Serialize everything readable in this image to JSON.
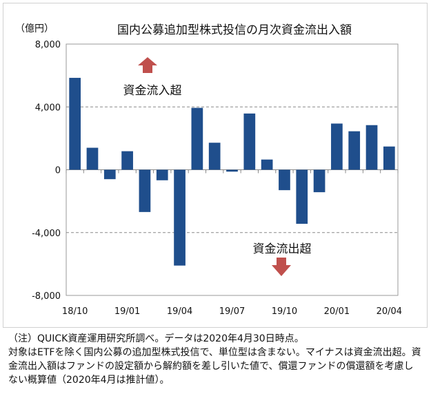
{
  "chart_data": {
    "type": "bar",
    "title": "国内公募追加型株式投信の月次資金流出入額",
    "ylabel": "（億円）",
    "xlabel": "",
    "ylim": [
      -8000,
      8000
    ],
    "yticks": [
      8000,
      4000,
      0,
      -4000,
      -8000
    ],
    "ytick_labels": [
      "8,000",
      "4,000",
      "0",
      "-4,000",
      "-8,000"
    ],
    "categories": [
      "18/10",
      "18/11",
      "18/12",
      "19/01",
      "19/02",
      "19/03",
      "19/04",
      "19/05",
      "19/06",
      "19/07",
      "19/08",
      "19/09",
      "19/10",
      "19/11",
      "19/12",
      "20/01",
      "20/02",
      "20/03",
      "20/04"
    ],
    "xtick_labels": {
      "0": "18/10",
      "3": "19/01",
      "6": "19/04",
      "9": "19/07",
      "12": "19/10",
      "15": "20/01",
      "18": "20/04"
    },
    "values": [
      5850,
      1400,
      -600,
      1180,
      -2690,
      -670,
      -6100,
      3940,
      1720,
      -120,
      3580,
      650,
      -1300,
      -3440,
      -1430,
      2940,
      2450,
      2840,
      1480
    ],
    "grid": true,
    "bar_color": "#1f4e8c",
    "annotations": [
      {
        "text": "資金流入超",
        "arrow": "up",
        "color": "#c0504d"
      },
      {
        "text": "資金流出超",
        "arrow": "down",
        "color": "#c0504d"
      }
    ]
  },
  "footnote": {
    "line1": "（注）QUICK資産運用研究所調べ。データは2020年4月30日時点。",
    "line2": "対象はETFを除く国内公募の追加型株式投信で、単位型は含まない。マイナスは資金流出超。資金流出入額はファンドの設定額から解約額を差し引いた値で、償還ファンドの償還額を考慮しない概算値（2020年4月は推計値）。"
  }
}
